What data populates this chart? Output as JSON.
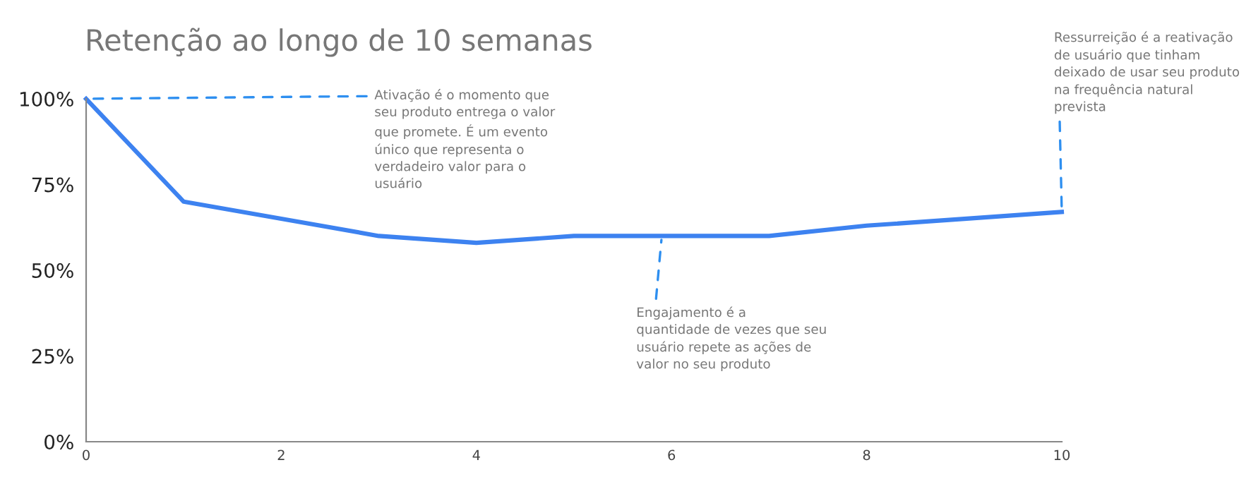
{
  "chart_data": {
    "type": "line",
    "title": "Retenção ao longo de 10 semanas",
    "x": [
      0,
      1,
      2,
      3,
      4,
      5,
      6,
      7,
      8,
      9,
      10
    ],
    "series": [
      {
        "color": "#3d82f0",
        "values": [
          100,
          70,
          65,
          60,
          58,
          60,
          60,
          60,
          63,
          65,
          67
        ]
      }
    ],
    "xlim": [
      0,
      10
    ],
    "xticks": [
      0,
      2,
      4,
      6,
      8,
      10
    ],
    "ylim": [
      0,
      100
    ],
    "yticks": [
      {
        "value": 0,
        "label": "0%"
      },
      {
        "value": 25,
        "label": "25%"
      },
      {
        "value": 50,
        "label": "50%"
      },
      {
        "value": 75,
        "label": "75%"
      },
      {
        "value": 100,
        "label": "100%"
      }
    ],
    "grid": false,
    "legend": false,
    "marker": "none",
    "line_style": "solid",
    "annotations": [
      {
        "text": "Ativação é o momento que\nseu produto entrega o valor\nque promete. É um evento\núnico que representa o\nverdadeiro valor para o\nusuário",
        "x": 0,
        "y": 100
      },
      {
        "text": "Engajamento é a\nquantidade de vezes que seu\nusuário repete as ações de\nvalor no seu produto",
        "x": 5.9,
        "y": 60
      },
      {
        "text": "Ressurreição é a reativação\nde usuário que tinham\ndeixado de usar seu produto\nna frequência natural\nprevista",
        "x": 10,
        "y": 67
      }
    ]
  }
}
